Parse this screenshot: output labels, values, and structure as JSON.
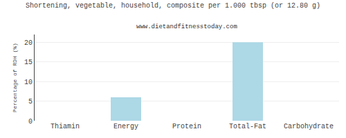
{
  "chart_data": {
    "type": "bar",
    "title": "Shortening, vegetable, household, composite per 1.000 tbsp (or 12.80 g)",
    "subtitle": "www.dietandfitnesstoday.com",
    "ylabel": "Percentage of RDH (%)",
    "categories": [
      "Thiamin",
      "Energy",
      "Protein",
      "Total-Fat",
      "Carbohydrate"
    ],
    "values": [
      0,
      6,
      0,
      20,
      0
    ],
    "color": "#add8e6",
    "ylim": [
      0,
      22
    ],
    "yticks": [
      0,
      5,
      10,
      15,
      20
    ],
    "grid": true
  }
}
